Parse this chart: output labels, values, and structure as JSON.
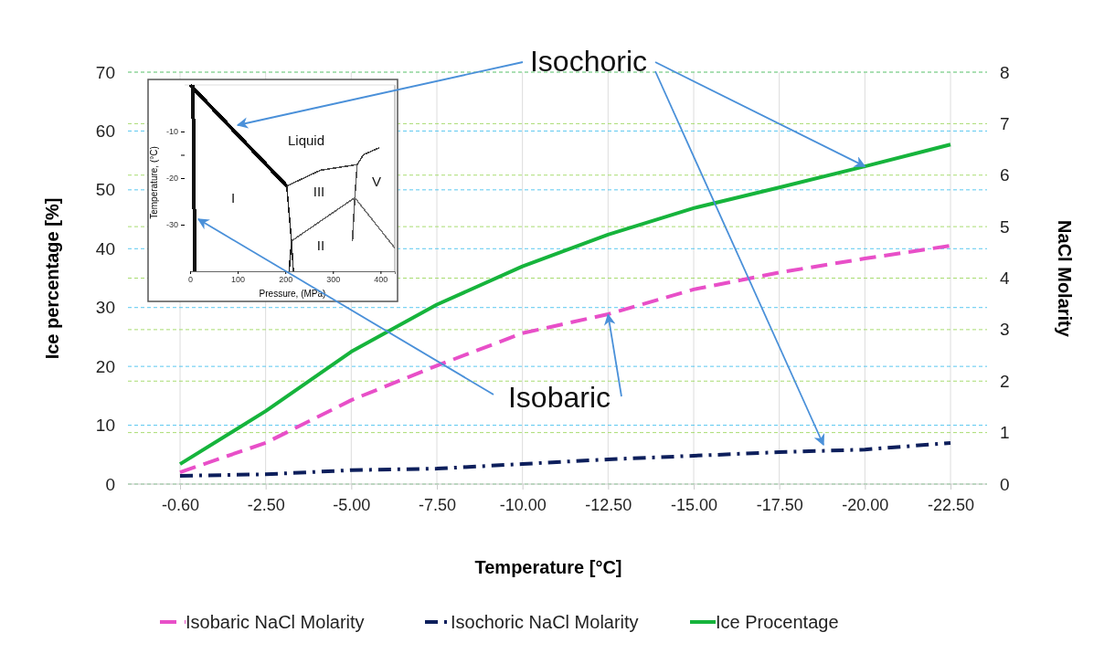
{
  "chart_data": [
    {
      "type": "line",
      "categories": [
        "-0.60",
        "-2.50",
        "-5.00",
        "-7.50",
        "-10.00",
        "-12.50",
        "-15.00",
        "-17.50",
        "-20.00",
        "-22.50"
      ],
      "xlabel": "Temperature [°C]",
      "ylabel": "Ice percentage [%]",
      "y2label": "NaCl Molarity",
      "ylim": [
        0,
        70
      ],
      "yticks": [
        0,
        10,
        20,
        30,
        40,
        50,
        60,
        70
      ],
      "y2lim": [
        0,
        8
      ],
      "y2ticks": [
        0,
        1,
        2,
        3,
        4,
        5,
        6,
        7,
        8
      ],
      "grid": true,
      "legend": "bottom",
      "marker": "none",
      "annotations": [
        {
          "text": "Isochoric",
          "x": "-20.00",
          "y": 54
        },
        {
          "text": "Isobaric",
          "x": "-12.50",
          "y": 28.8
        }
      ],
      "series": [
        {
          "name": "Isobaric NaCl Molarity",
          "color": "#e84fc8",
          "axis": "y2",
          "line_style": "dashed",
          "values": [
            0.23,
            0.8,
            1.63,
            2.3,
            2.93,
            3.3,
            3.78,
            4.11,
            4.38,
            4.63
          ]
        },
        {
          "name": "Isochoric NaCl Molarity",
          "color": "#0d1f5c",
          "axis": "y2",
          "line_style": "dotted",
          "values": [
            0.16,
            0.19,
            0.27,
            0.3,
            0.39,
            0.48,
            0.55,
            0.62,
            0.67,
            0.8
          ]
        },
        {
          "name": "Ice Procentage",
          "color": "#16b43c",
          "line_style": "solid",
          "values": [
            3.4,
            12.4,
            22.5,
            30.5,
            37,
            42.4,
            46.9,
            50.4,
            54,
            57.7
          ]
        }
      ]
    },
    {
      "type": "line",
      "xlabel": "Pressure, (MPa)",
      "ylabel": "Temperature, (°C)",
      "xlim": [
        0,
        430
      ],
      "ylim": [
        -40,
        0
      ],
      "xticks": [
        0,
        100,
        200,
        300,
        400
      ],
      "yticks": [
        -10,
        {
          "value": -15,
          "label": null
        },
        -20,
        -30
      ],
      "marker": "none",
      "legend": false,
      "annotations": [
        "Liquid",
        "I",
        "III",
        "V",
        "II"
      ],
      "series": [
        {
          "color": "#000000",
          "x": [
            0,
            203
          ],
          "values": [
            0,
            -21.7
          ]
        },
        {
          "color": "#111111",
          "x": [
            6,
            10
          ],
          "values": [
            0,
            -40
          ]
        },
        {
          "color": "#222222",
          "x": [
            203,
            213,
            208
          ],
          "values": [
            -21.7,
            -33.5,
            -40
          ]
        },
        {
          "color": "#333333",
          "x": [
            213,
            217
          ],
          "values": [
            -33.5,
            -40
          ]
        },
        {
          "color": "#444444",
          "x": [
            203,
            274,
            351,
            364,
            397
          ],
          "values": [
            -21.7,
            -18.3,
            -17.1,
            -15,
            -13.5
          ]
        },
        {
          "color": "#555555",
          "x": [
            351,
            346,
            341
          ],
          "values": [
            -17.1,
            -24.2,
            -33.5
          ]
        },
        {
          "color": "#666666",
          "x": [
            213,
            346
          ],
          "values": [
            -33.5,
            -24.2
          ]
        },
        {
          "color": "#777777",
          "x": [
            346,
            430
          ],
          "values": [
            -24.2,
            -35
          ]
        }
      ]
    }
  ]
}
